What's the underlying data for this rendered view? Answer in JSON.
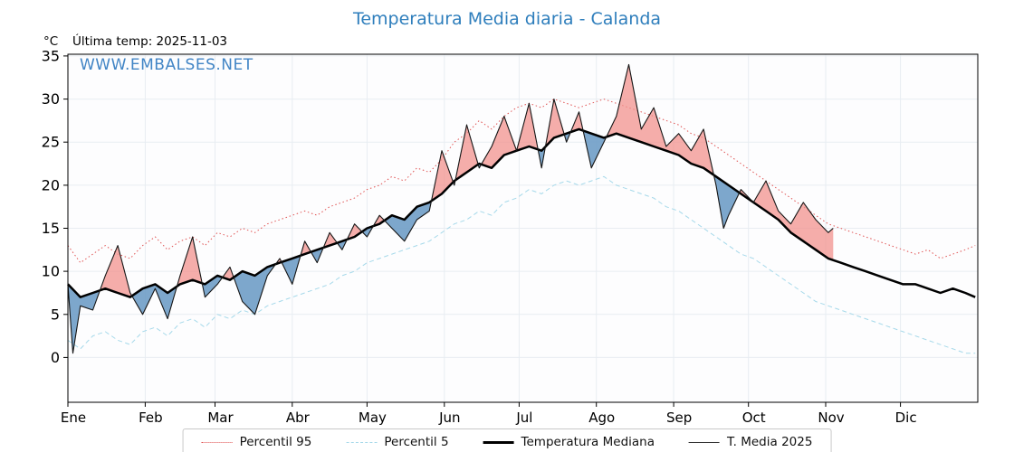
{
  "header": {
    "title": "Temperatura Media diaria - Calanda",
    "unit_label": "°C",
    "last_temp_label": "Última temp: 2025-11-03",
    "watermark": "WWW.EMBALSES.NET"
  },
  "colors": {
    "title": "#2e7ebc",
    "watermark": "#4285c5",
    "percentil95_line": "#e05252",
    "percentil5_line": "#a6d9ea",
    "median_line": "#000000",
    "t2025_line": "#151515",
    "fill_above": "#f2928d",
    "fill_below": "#6f9dc6",
    "grid": "#e8edf2"
  },
  "legend": {
    "items": [
      {
        "label": "Percentil 95"
      },
      {
        "label": "Percentil 5"
      },
      {
        "label": "Temperatura Mediana"
      },
      {
        "label": "T. Media 2025"
      }
    ]
  },
  "chart_data": {
    "type": "line",
    "title": "Temperatura Media diaria - Calanda",
    "xlabel": "",
    "ylabel": "°C",
    "grid": true,
    "legend_position": "bottom",
    "x_axis": {
      "range": [
        0,
        365
      ],
      "tick_days": [
        0,
        31,
        59,
        90,
        120,
        151,
        181,
        212,
        243,
        273,
        304,
        334
      ],
      "tick_labels": [
        "Ene",
        "Feb",
        "Mar",
        "Abr",
        "May",
        "Jun",
        "Jul",
        "Ago",
        "Sep",
        "Oct",
        "Nov",
        "Dic"
      ]
    },
    "y_axis": {
      "range": [
        -5.2,
        35.2
      ],
      "ticks": [
        0,
        5,
        10,
        15,
        20,
        25,
        30,
        35
      ],
      "unit": "°C"
    },
    "series": [
      {
        "name": "Percentil 95",
        "style": "dotted",
        "color": "#e05252",
        "days": [
          0,
          5,
          10,
          15,
          20,
          25,
          30,
          35,
          40,
          45,
          50,
          55,
          60,
          65,
          70,
          75,
          80,
          85,
          90,
          95,
          100,
          105,
          110,
          115,
          120,
          125,
          130,
          135,
          140,
          145,
          150,
          155,
          160,
          165,
          170,
          175,
          180,
          185,
          190,
          195,
          200,
          205,
          210,
          215,
          220,
          225,
          230,
          235,
          240,
          245,
          250,
          255,
          260,
          265,
          270,
          275,
          280,
          285,
          290,
          295,
          300,
          305,
          310,
          315,
          320,
          325,
          330,
          335,
          340,
          345,
          350,
          355,
          360,
          364
        ],
        "values": [
          13,
          11,
          12,
          13,
          12,
          11.5,
          13,
          14,
          12.5,
          13.5,
          14,
          13,
          14.5,
          14,
          15,
          14.5,
          15.5,
          16,
          16.5,
          17,
          16.5,
          17.5,
          18,
          18.5,
          19.5,
          20,
          21,
          20.5,
          22,
          21.5,
          23,
          25,
          26,
          27.5,
          26.5,
          28,
          29,
          29.5,
          29,
          30,
          29.5,
          29,
          29.5,
          30,
          29.5,
          29,
          28.5,
          28,
          27.5,
          27,
          26,
          25.5,
          24.5,
          23.5,
          22.5,
          21.5,
          20.5,
          19.5,
          18.5,
          17.5,
          16.5,
          15.5,
          15,
          14.5,
          14,
          13.5,
          13,
          12.5,
          12,
          12.5,
          11.5,
          12,
          12.5,
          13
        ]
      },
      {
        "name": "Percentil 5",
        "style": "dashed",
        "color": "#a6d9ea",
        "days": [
          0,
          5,
          10,
          15,
          20,
          25,
          30,
          35,
          40,
          45,
          50,
          55,
          60,
          65,
          70,
          75,
          80,
          85,
          90,
          95,
          100,
          105,
          110,
          115,
          120,
          125,
          130,
          135,
          140,
          145,
          150,
          155,
          160,
          165,
          170,
          175,
          180,
          185,
          190,
          195,
          200,
          205,
          210,
          215,
          220,
          225,
          230,
          235,
          240,
          245,
          250,
          255,
          260,
          265,
          270,
          275,
          280,
          285,
          290,
          295,
          300,
          305,
          310,
          315,
          320,
          325,
          330,
          335,
          340,
          345,
          350,
          355,
          360,
          364
        ],
        "values": [
          2,
          1,
          2.5,
          3,
          2,
          1.5,
          3,
          3.5,
          2.5,
          4,
          4.5,
          3.5,
          5,
          4.5,
          5.5,
          5,
          6,
          6.5,
          7,
          7.5,
          8,
          8.5,
          9.5,
          10,
          11,
          11.5,
          12,
          12.5,
          13,
          13.5,
          14.5,
          15.5,
          16,
          17,
          16.5,
          18,
          18.5,
          19.5,
          19,
          20,
          20.5,
          20,
          20.5,
          21,
          20,
          19.5,
          19,
          18.5,
          17.5,
          17,
          16,
          15,
          14,
          13,
          12,
          11.5,
          10.5,
          9.5,
          8.5,
          7.5,
          6.5,
          6,
          5.5,
          5,
          4.5,
          4,
          3.5,
          3,
          2.5,
          2,
          1.5,
          1,
          0.5,
          0.5
        ]
      },
      {
        "name": "Temperatura Mediana",
        "style": "solid-thick",
        "color": "#000000",
        "days": [
          0,
          5,
          10,
          15,
          20,
          25,
          30,
          35,
          40,
          45,
          50,
          55,
          60,
          65,
          70,
          75,
          80,
          85,
          90,
          95,
          100,
          105,
          110,
          115,
          120,
          125,
          130,
          135,
          140,
          145,
          150,
          155,
          160,
          165,
          170,
          175,
          180,
          185,
          190,
          195,
          200,
          205,
          210,
          215,
          220,
          225,
          230,
          235,
          240,
          245,
          250,
          255,
          260,
          265,
          270,
          275,
          280,
          285,
          290,
          295,
          300,
          305,
          310,
          315,
          320,
          325,
          330,
          335,
          340,
          345,
          350,
          355,
          360,
          364
        ],
        "values": [
          8.5,
          7,
          7.5,
          8,
          7.5,
          7,
          8,
          8.5,
          7.5,
          8.5,
          9,
          8.5,
          9.5,
          9,
          10,
          9.5,
          10.5,
          11,
          11.5,
          12,
          12.5,
          13,
          13.5,
          14,
          15,
          15.5,
          16.5,
          16,
          17.5,
          18,
          19,
          20.5,
          21.5,
          22.5,
          22,
          23.5,
          24,
          24.5,
          24,
          25.5,
          26,
          26.5,
          26,
          25.5,
          26,
          25.5,
          25,
          24.5,
          24,
          23.5,
          22.5,
          22,
          21,
          20,
          19,
          18,
          17,
          16,
          14.5,
          13.5,
          12.5,
          11.5,
          11,
          10.5,
          10,
          9.5,
          9,
          8.5,
          8.5,
          8,
          7.5,
          8,
          7.5,
          7
        ]
      },
      {
        "name": "T. Media 2025",
        "style": "solid-thin",
        "color": "#151515",
        "days": [
          0,
          2,
          5,
          10,
          15,
          20,
          25,
          30,
          35,
          40,
          45,
          50,
          55,
          60,
          65,
          70,
          75,
          80,
          85,
          90,
          95,
          100,
          105,
          110,
          115,
          120,
          125,
          130,
          135,
          140,
          145,
          150,
          155,
          160,
          165,
          170,
          175,
          180,
          185,
          190,
          195,
          200,
          205,
          210,
          215,
          220,
          225,
          230,
          235,
          240,
          245,
          250,
          255,
          260,
          263,
          265,
          270,
          275,
          280,
          285,
          290,
          295,
          300,
          305,
          307
        ],
        "values": [
          8.5,
          0.5,
          6,
          5.5,
          9.5,
          13,
          7.5,
          5,
          8,
          4.5,
          9.5,
          14,
          7,
          8.5,
          10.5,
          6.5,
          5,
          9.5,
          11.5,
          8.5,
          13.5,
          11,
          14.5,
          12.5,
          15.5,
          14,
          16.5,
          15,
          13.5,
          16,
          17,
          24,
          20,
          27,
          22,
          24.5,
          28,
          24,
          29.5,
          22,
          30,
          25,
          28.5,
          22,
          25,
          28,
          34,
          26.5,
          29,
          24.5,
          26,
          24,
          26.5,
          20,
          15,
          16.5,
          19.5,
          18,
          20.5,
          17,
          15.5,
          18,
          16,
          14.5,
          15
        ]
      }
    ],
    "fills": {
      "between": [
        "T. Media 2025",
        "Temperatura Mediana"
      ],
      "above_color": "#f2928d",
      "below_color": "#6f9dc6"
    }
  }
}
